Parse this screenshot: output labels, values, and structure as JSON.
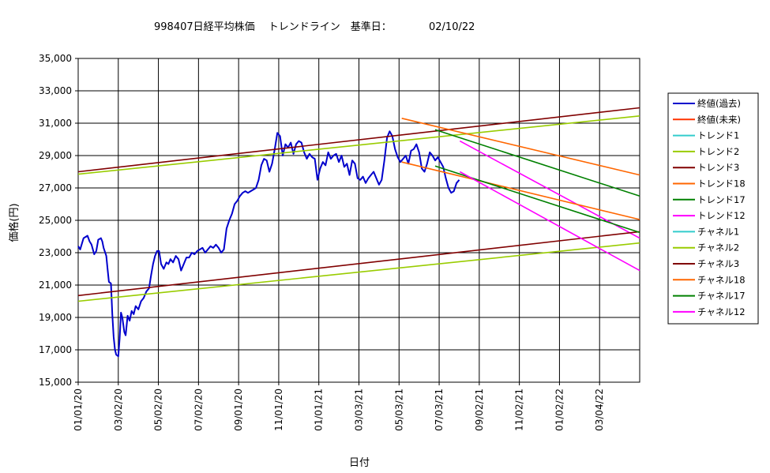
{
  "chart_data": {
    "type": "line",
    "title": "998407日経平均株価　 トレンドライン　基準日：",
    "base_date": "02/10/22",
    "xlabel": "日付",
    "ylabel": "価格(円)",
    "ylim": [
      15000,
      35000
    ],
    "yticks": [
      "15,000",
      "17,000",
      "19,000",
      "21,000",
      "23,000",
      "25,000",
      "27,000",
      "29,000",
      "31,000",
      "33,000",
      "35,000"
    ],
    "xticks": [
      "01/01/20",
      "03/02/20",
      "05/02/20",
      "07/02/20",
      "09/01/20",
      "11/01/20",
      "01/01/21",
      "03/03/21",
      "05/03/21",
      "07/03/21",
      "09/02/21",
      "11/02/21",
      "01/02/22",
      "03/04/22"
    ],
    "x_range_days": [
      0,
      840
    ],
    "grid": true,
    "legend_position": "right",
    "series": [
      {
        "name": "終値(過去)",
        "color": "#0000CC",
        "points": [
          [
            0,
            23400
          ],
          [
            3,
            23200
          ],
          [
            8,
            23900
          ],
          [
            14,
            24050
          ],
          [
            17,
            23700
          ],
          [
            20,
            23500
          ],
          [
            24,
            22900
          ],
          [
            27,
            23100
          ],
          [
            30,
            23800
          ],
          [
            34,
            23900
          ],
          [
            36,
            23700
          ],
          [
            38,
            23300
          ],
          [
            42,
            22800
          ],
          [
            44,
            22000
          ],
          [
            46,
            21200
          ],
          [
            49,
            21100
          ],
          [
            51,
            19200
          ],
          [
            53,
            17800
          ],
          [
            55,
            17000
          ],
          [
            57,
            16700
          ],
          [
            60,
            16600
          ],
          [
            62,
            17700
          ],
          [
            64,
            19300
          ],
          [
            66,
            19000
          ],
          [
            69,
            18100
          ],
          [
            71,
            17900
          ],
          [
            74,
            19100
          ],
          [
            77,
            18800
          ],
          [
            80,
            19400
          ],
          [
            83,
            19200
          ],
          [
            86,
            19700
          ],
          [
            90,
            19500
          ],
          [
            94,
            20000
          ],
          [
            98,
            20200
          ],
          [
            102,
            20600
          ],
          [
            106,
            20800
          ],
          [
            109,
            21600
          ],
          [
            112,
            22300
          ],
          [
            115,
            22800
          ],
          [
            118,
            23100
          ],
          [
            121,
            23100
          ],
          [
            124,
            22300
          ],
          [
            128,
            22000
          ],
          [
            132,
            22400
          ],
          [
            135,
            22300
          ],
          [
            138,
            22600
          ],
          [
            142,
            22400
          ],
          [
            146,
            22800
          ],
          [
            150,
            22600
          ],
          [
            154,
            21900
          ],
          [
            158,
            22300
          ],
          [
            162,
            22700
          ],
          [
            166,
            22700
          ],
          [
            170,
            23000
          ],
          [
            174,
            22900
          ],
          [
            178,
            23100
          ],
          [
            182,
            23200
          ],
          [
            186,
            23300
          ],
          [
            190,
            23000
          ],
          [
            194,
            23200
          ],
          [
            198,
            23400
          ],
          [
            202,
            23300
          ],
          [
            206,
            23500
          ],
          [
            210,
            23300
          ],
          [
            214,
            23000
          ],
          [
            218,
            23200
          ],
          [
            222,
            24500
          ],
          [
            226,
            25000
          ],
          [
            230,
            25400
          ],
          [
            234,
            26000
          ],
          [
            238,
            26200
          ],
          [
            242,
            26500
          ],
          [
            246,
            26700
          ],
          [
            250,
            26800
          ],
          [
            254,
            26700
          ],
          [
            258,
            26800
          ],
          [
            262,
            26900
          ],
          [
            266,
            27000
          ],
          [
            270,
            27500
          ],
          [
            274,
            28400
          ],
          [
            278,
            28800
          ],
          [
            282,
            28700
          ],
          [
            286,
            28000
          ],
          [
            290,
            28500
          ],
          [
            294,
            29400
          ],
          [
            298,
            30400
          ],
          [
            302,
            30200
          ],
          [
            306,
            29000
          ],
          [
            310,
            29700
          ],
          [
            314,
            29500
          ],
          [
            318,
            29800
          ],
          [
            322,
            29100
          ],
          [
            326,
            29700
          ],
          [
            330,
            29900
          ],
          [
            334,
            29800
          ],
          [
            338,
            29200
          ],
          [
            342,
            28800
          ],
          [
            346,
            29100
          ],
          [
            350,
            28900
          ],
          [
            354,
            28800
          ],
          [
            358,
            27500
          ],
          [
            362,
            28200
          ],
          [
            366,
            28600
          ],
          [
            370,
            28400
          ],
          [
            374,
            29200
          ],
          [
            378,
            28800
          ],
          [
            382,
            29000
          ],
          [
            386,
            29100
          ],
          [
            390,
            28600
          ],
          [
            394,
            29000
          ],
          [
            398,
            28300
          ],
          [
            402,
            28500
          ],
          [
            406,
            27800
          ],
          [
            410,
            28700
          ],
          [
            414,
            28500
          ],
          [
            418,
            27600
          ],
          [
            422,
            27500
          ],
          [
            426,
            27700
          ],
          [
            430,
            27300
          ],
          [
            434,
            27600
          ],
          [
            438,
            27800
          ],
          [
            442,
            28000
          ],
          [
            446,
            27600
          ],
          [
            450,
            27200
          ],
          [
            454,
            27500
          ],
          [
            458,
            28700
          ],
          [
            462,
            30100
          ],
          [
            466,
            30500
          ],
          [
            470,
            30200
          ],
          [
            474,
            29400
          ],
          [
            478,
            28900
          ],
          [
            482,
            28600
          ],
          [
            486,
            28800
          ],
          [
            490,
            29000
          ],
          [
            494,
            28500
          ],
          [
            498,
            29300
          ],
          [
            502,
            29400
          ],
          [
            506,
            29700
          ],
          [
            510,
            29200
          ],
          [
            514,
            28200
          ],
          [
            518,
            28000
          ],
          [
            522,
            28500
          ],
          [
            526,
            29200
          ],
          [
            530,
            29000
          ],
          [
            534,
            28700
          ],
          [
            538,
            28900
          ],
          [
            542,
            28600
          ],
          [
            546,
            28300
          ],
          [
            550,
            27600
          ],
          [
            554,
            27000
          ],
          [
            558,
            26700
          ],
          [
            562,
            26800
          ],
          [
            566,
            27300
          ],
          [
            570,
            27500
          ]
        ]
      },
      {
        "name": "終値(未来)",
        "color": "#FF3300",
        "points": []
      },
      {
        "name": "トレンド1",
        "color": "#33CCCC",
        "points": []
      },
      {
        "name": "トレンド2",
        "color": "#99CC00",
        "points": [
          [
            0,
            27850
          ],
          [
            840,
            31450
          ]
        ]
      },
      {
        "name": "トレンド3",
        "color": "#800000",
        "points": [
          [
            0,
            28000
          ],
          [
            840,
            31950
          ]
        ]
      },
      {
        "name": "トレンド18",
        "color": "#FF6600",
        "points": [
          [
            484,
            31300
          ],
          [
            840,
            27800
          ]
        ]
      },
      {
        "name": "トレンド17",
        "color": "#008000",
        "points": [
          [
            534,
            30600
          ],
          [
            840,
            26500
          ]
        ]
      },
      {
        "name": "トレンド12",
        "color": "#FF00FF",
        "points": [
          [
            571,
            29900
          ],
          [
            840,
            23900
          ]
        ]
      },
      {
        "name": "チャネル1",
        "color": "#33CCCC",
        "points": []
      },
      {
        "name": "チャネル2",
        "color": "#99CC00",
        "points": [
          [
            0,
            20000
          ],
          [
            840,
            23600
          ]
        ]
      },
      {
        "name": "チャネル3",
        "color": "#800000",
        "points": [
          [
            0,
            20350
          ],
          [
            840,
            24300
          ]
        ]
      },
      {
        "name": "チャネル18",
        "color": "#FF6600",
        "points": [
          [
            484,
            28600
          ],
          [
            840,
            25050
          ]
        ]
      },
      {
        "name": "チャネル17",
        "color": "#008000",
        "points": [
          [
            534,
            28350
          ],
          [
            840,
            24250
          ]
        ]
      },
      {
        "name": "チャネル12",
        "color": "#FF00FF",
        "points": [
          [
            571,
            28000
          ],
          [
            840,
            21900
          ]
        ]
      }
    ]
  }
}
